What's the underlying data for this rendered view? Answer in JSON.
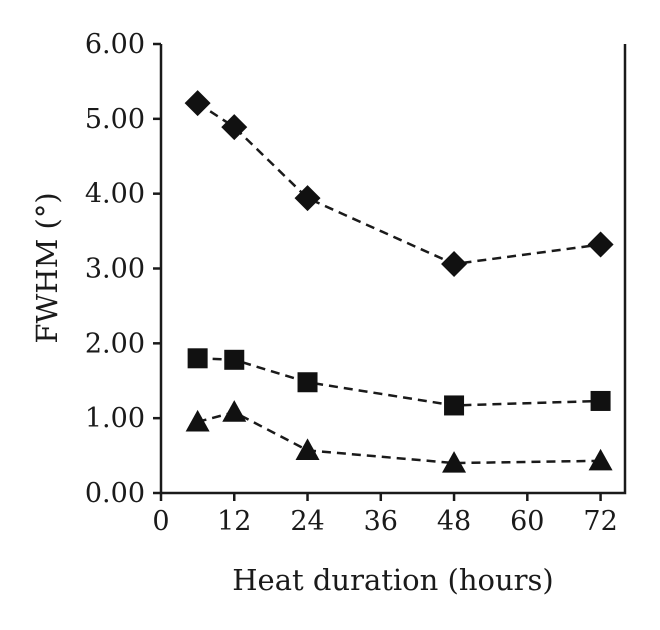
{
  "chart_data": {
    "type": "line",
    "title": "",
    "xlabel": "Heat duration (hours)",
    "ylabel": "FWHM (°)",
    "xlim": [
      0,
      76
    ],
    "ylim": [
      0,
      6
    ],
    "xticks": [
      0,
      12,
      24,
      36,
      48,
      60,
      72
    ],
    "yticks": [
      0,
      1,
      2,
      3,
      4,
      5,
      6
    ],
    "xtick_labels": [
      "0",
      "12",
      "24",
      "36",
      "48",
      "60",
      "72"
    ],
    "ytick_labels": [
      "0.00",
      "1.00",
      "2.00",
      "3.00",
      "4.00",
      "5.00",
      "6.00"
    ],
    "grid": false,
    "legend": "none",
    "line_style": "dashed",
    "color": "#111111",
    "x": [
      6,
      12,
      24,
      48,
      72
    ],
    "series": [
      {
        "marker": "diamond",
        "values": [
          5.21,
          4.89,
          3.94,
          3.06,
          3.32
        ]
      },
      {
        "marker": "square",
        "values": [
          1.8,
          1.78,
          1.48,
          1.17,
          1.23
        ]
      },
      {
        "marker": "triangle",
        "values": [
          0.95,
          1.08,
          0.57,
          0.4,
          0.43
        ]
      }
    ]
  }
}
